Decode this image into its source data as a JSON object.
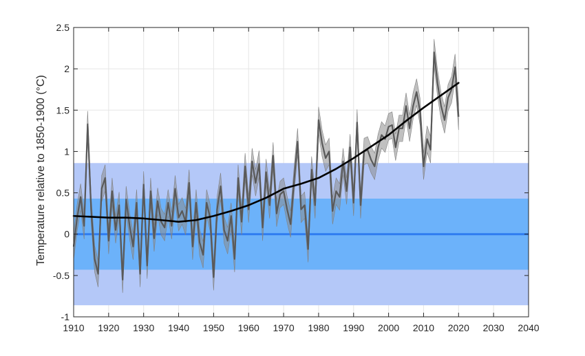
{
  "chart_data": {
    "type": "line",
    "title": "",
    "xlabel": "",
    "ylabel": "Temperature relative to 1850-1900 (°C)",
    "xlim": [
      1910,
      2040
    ],
    "ylim": [
      -1,
      2.5
    ],
    "xticks": [
      1910,
      1920,
      1930,
      1940,
      1950,
      1960,
      1970,
      1980,
      1990,
      2000,
      2010,
      2020,
      2030,
      2040
    ],
    "yticks": [
      2.5,
      2,
      1.5,
      1,
      0.5,
      0,
      -0.5,
      -1
    ],
    "grid": true,
    "bands": [
      {
        "y0": -0.86,
        "y1": 0.86,
        "color": "#b4c8f8"
      },
      {
        "y0": -0.43,
        "y1": 0.43,
        "color": "#6cb2fa"
      }
    ],
    "zero_line": {
      "y": 0,
      "color": "#2f7cf0"
    },
    "uncertainty_halfwidth": 0.16,
    "series": [
      {
        "color": "#595959",
        "x": [
          1910,
          1911,
          1912,
          1913,
          1914,
          1915,
          1916,
          1917,
          1918,
          1919,
          1920,
          1921,
          1922,
          1923,
          1924,
          1925,
          1926,
          1927,
          1928,
          1929,
          1930,
          1931,
          1932,
          1933,
          1934,
          1935,
          1936,
          1937,
          1938,
          1939,
          1940,
          1941,
          1942,
          1943,
          1944,
          1945,
          1946,
          1947,
          1948,
          1949,
          1950,
          1951,
          1952,
          1953,
          1954,
          1955,
          1956,
          1957,
          1958,
          1959,
          1960,
          1961,
          1962,
          1963,
          1964,
          1965,
          1966,
          1967,
          1968,
          1969,
          1970,
          1971,
          1972,
          1973,
          1974,
          1975,
          1976,
          1977,
          1978,
          1979,
          1980,
          1981,
          1982,
          1983,
          1984,
          1985,
          1986,
          1987,
          1988,
          1989,
          1990,
          1991,
          1992,
          1993,
          1994,
          1995,
          1996,
          1997,
          1998,
          1999,
          2000,
          2001,
          2002,
          2003,
          2004,
          2005,
          2006,
          2007,
          2008,
          2009,
          2010,
          2011,
          2012,
          2013,
          2014,
          2015,
          2016,
          2017,
          2018,
          2019,
          2020
        ],
        "values": [
          -0.15,
          0.2,
          0.45,
          0.1,
          1.33,
          0.3,
          -0.3,
          -0.48,
          0.55,
          0.68,
          -0.08,
          0.52,
          0.05,
          0.35,
          -0.55,
          0.42,
          0.1,
          -0.15,
          0.38,
          -0.48,
          0.6,
          -0.38,
          0.52,
          -0.05,
          0.4,
          0.15,
          0.08,
          0.38,
          0.1,
          0.55,
          0.2,
          0.28,
          0.15,
          0.62,
          -0.15,
          0.38,
          -0.1,
          -0.25,
          0.38,
          0.2,
          -0.52,
          0.3,
          0.58,
          0.05,
          -0.08,
          0.22,
          -0.3,
          0.68,
          0.15,
          0.82,
          0.3,
          0.88,
          0.62,
          0.85,
          0.08,
          0.75,
          0.35,
          0.95,
          0.25,
          0.48,
          0.52,
          0.3,
          0.12,
          0.65,
          1.12,
          0.3,
          0.35,
          -0.18,
          0.78,
          0.35,
          1.38,
          1.1,
          0.92,
          1.0,
          0.28,
          0.52,
          0.45,
          0.88,
          0.52,
          1.05,
          0.38,
          1.35,
          0.35,
          1.0,
          1.02,
          0.9,
          0.82,
          1.05,
          1.2,
          1.15,
          1.3,
          1.32,
          1.05,
          1.28,
          1.28,
          1.55,
          1.28,
          1.55,
          1.72,
          1.48,
          0.82,
          1.15,
          1.02,
          2.2,
          1.82,
          1.55,
          1.38,
          1.65,
          1.75,
          2.02,
          1.42
        ]
      },
      {
        "color": "#000000",
        "x": [
          1910,
          1915,
          1920,
          1925,
          1930,
          1935,
          1940,
          1945,
          1950,
          1955,
          1960,
          1965,
          1970,
          1975,
          1980,
          1985,
          1990,
          1995,
          2000,
          2005,
          2010,
          2015,
          2020
        ],
        "values": [
          0.22,
          0.21,
          0.2,
          0.2,
          0.19,
          0.17,
          0.15,
          0.17,
          0.22,
          0.28,
          0.35,
          0.44,
          0.55,
          0.61,
          0.68,
          0.79,
          0.92,
          1.06,
          1.2,
          1.37,
          1.53,
          1.68,
          1.83
        ]
      }
    ]
  }
}
